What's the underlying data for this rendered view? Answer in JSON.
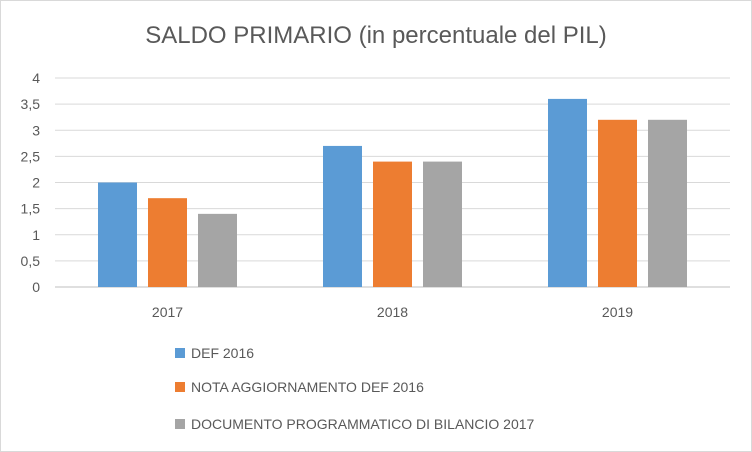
{
  "chart_data": {
    "type": "bar",
    "title": "SALDO PRIMARIO (in percentuale del PIL)",
    "xlabel": "",
    "ylabel": "",
    "categories": [
      "2017",
      "2018",
      "2019"
    ],
    "series": [
      {
        "name": "DEF 2016",
        "values": [
          2.0,
          2.7,
          3.6
        ],
        "color": "#5b9bd5"
      },
      {
        "name": "NOTA AGGIORNAMENTO DEF 2016",
        "values": [
          1.7,
          2.4,
          3.2
        ],
        "color": "#ed7d31"
      },
      {
        "name": "DOCUMENTO PROGRAMMATICO DI BILANCIO 2017",
        "values": [
          1.4,
          2.4,
          3.2
        ],
        "color": "#a5a5a5"
      }
    ],
    "ylim": [
      0,
      4
    ],
    "yticks": [
      "0",
      "0,5",
      "1",
      "1,5",
      "2",
      "2,5",
      "3",
      "3,5",
      "4"
    ],
    "grid": true,
    "legend_position": "bottom"
  }
}
